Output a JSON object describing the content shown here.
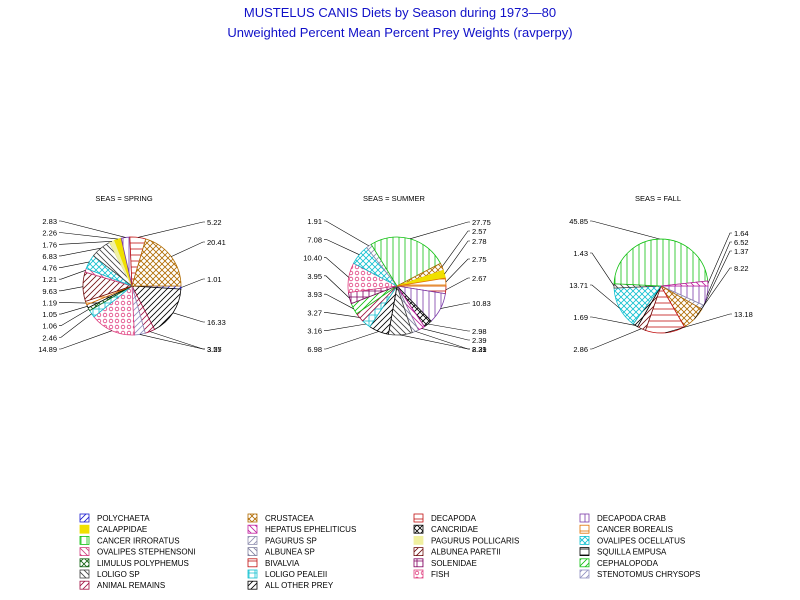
{
  "chart_data": {
    "type": "pie",
    "title": "MUSTELUS CANIS Diets by Season during 1973—80",
    "subtitle": "Unweighted Percent Mean Percent Prey  Weights (ravperpy)",
    "legend_position": "bottom",
    "categories": [
      {
        "name": "POLYCHAETA",
        "color": "#1a1ad0",
        "pattern": "diag-fwd"
      },
      {
        "name": "CRUSTACEA",
        "color": "#b06a00",
        "pattern": "crosshatch-diag"
      },
      {
        "name": "DECAPODA",
        "color": "#c01010",
        "pattern": "horiz"
      },
      {
        "name": "DECAPODA CRAB",
        "color": "#7a3aa8",
        "pattern": "vert"
      },
      {
        "name": "CALAPPIDAE",
        "color": "#f0e000",
        "pattern": "solid"
      },
      {
        "name": "HEPATUS EPHELITICUS",
        "color": "#c020a0",
        "pattern": "diag-back"
      },
      {
        "name": "CANCRIDAE",
        "color": "#000000",
        "pattern": "crosshatch-diag"
      },
      {
        "name": "CANCER BOREALIS",
        "color": "#e07000",
        "pattern": "horiz"
      },
      {
        "name": "CANCER IRRORATUS",
        "color": "#10c010",
        "pattern": "vert"
      },
      {
        "name": "PAGURUS SP",
        "color": "#9090b0",
        "pattern": "diag-fwd"
      },
      {
        "name": "PAGURUS POLLICARIS",
        "color": "#f0f0a0",
        "pattern": "solid"
      },
      {
        "name": "OVALIPES OCELLATUS",
        "color": "#10c0d0",
        "pattern": "crosshatch-diag"
      },
      {
        "name": "OVALIPES STEPHENSONI",
        "color": "#d04080",
        "pattern": "diag-back"
      },
      {
        "name": "ALBUNEA SP",
        "color": "#8080a0",
        "pattern": "diag-back"
      },
      {
        "name": "ALBUNEA PARETII",
        "color": "#701010",
        "pattern": "diag-fwd"
      },
      {
        "name": "SQUILLA EMPUSA",
        "color": "#000000",
        "pattern": "horiz"
      },
      {
        "name": "LIMULUS POLYPHEMUS",
        "color": "#106010",
        "pattern": "crosshatch-diag"
      },
      {
        "name": "BIVALVIA",
        "color": "#c01010",
        "pattern": "horiz"
      },
      {
        "name": "SOLENIDAE",
        "color": "#800060",
        "pattern": "crosshatch"
      },
      {
        "name": "CEPHALOPODA",
        "color": "#10c010",
        "pattern": "diag-fwd"
      },
      {
        "name": "LOLIGO SP",
        "color": "#404040",
        "pattern": "diag-back"
      },
      {
        "name": "LOLIGO PEALEII",
        "color": "#10c0d0",
        "pattern": "crosshatch"
      },
      {
        "name": "FISH",
        "color": "#e04080",
        "pattern": "circles"
      },
      {
        "name": "STENOTOMUS CHRYSOPS",
        "color": "#9090c0",
        "pattern": "diag-fwd"
      },
      {
        "name": "ANIMAL REMAINS",
        "color": "#a01040",
        "pattern": "diag-fwd"
      },
      {
        "name": "ALL OTHER PREY",
        "color": "#000000",
        "pattern": "diag-fwd"
      }
    ],
    "panels": [
      {
        "title": "SEAS = SPRING",
        "slices": [
          {
            "category": "POLYCHAETA",
            "value": 1.01
          },
          {
            "category": "ALL OTHER PREY",
            "value": 16.33
          },
          {
            "category": "ANIMAL REMAINS",
            "value": 3.27
          },
          {
            "category": "STENOTOMUS CHRYSOPS",
            "value": 3.55
          },
          {
            "category": "FISH",
            "value": 14.89
          },
          {
            "category": "LOLIGO PEALEII",
            "value": 2.46
          },
          {
            "category": "LIMULUS POLYPHEMUS",
            "value": 1.06
          },
          {
            "category": "SQUILLA EMPUSA",
            "value": 1.05
          },
          {
            "category": "CANCER BOREALIS",
            "value": 1.19
          },
          {
            "category": "ALBUNEA PARETII",
            "value": 9.63
          },
          {
            "category": "OVALIPES STEPHENSONI",
            "value": 1.21
          },
          {
            "category": "OVALIPES OCELLATUS",
            "value": 4.76
          },
          {
            "category": "LOLIGO SP",
            "value": 6.83
          },
          {
            "category": "PAGURUS POLLICARIS",
            "value": 1.76
          },
          {
            "category": "CALAPPIDAE",
            "value": 2.26
          },
          {
            "category": "DECAPODA CRAB",
            "value": 2.83
          },
          {
            "category": "DECAPODA",
            "value": 5.22
          },
          {
            "category": "CRUSTACEA",
            "value": 20.41
          }
        ],
        "labels": [
          "5.22",
          "20.41",
          "1.01",
          "16.33",
          "3.27",
          "3.55",
          "14.89",
          "2.46",
          "1.06",
          "1.05",
          "1.19",
          "9.63",
          "1.21",
          "4.76",
          "6.83",
          "1.76",
          "2.26",
          "2.83"
        ]
      },
      {
        "title": "SEAS = SUMMER",
        "slices": [
          {
            "category": "DECAPODA",
            "value": 2.67
          },
          {
            "category": "DECAPODA CRAB",
            "value": 10.83
          },
          {
            "category": "CANCRIDAE",
            "value": 2.98
          },
          {
            "category": "HEPATUS EPHELITICUS",
            "value": 2.39
          },
          {
            "category": "ALBUNEA SP",
            "value": 2.29
          },
          {
            "category": "LOLIGO SP",
            "value": 8.31
          },
          {
            "category": "ALL OTHER PREY",
            "value": 6.98
          },
          {
            "category": "LOLIGO PEALEII",
            "value": 3.16
          },
          {
            "category": "ANIMAL REMAINS",
            "value": 3.27
          },
          {
            "category": "CEPHALOPODA",
            "value": 3.93
          },
          {
            "category": "SOLENIDAE",
            "value": 3.95
          },
          {
            "category": "FISH",
            "value": 10.4
          },
          {
            "category": "OVALIPES OCELLATUS",
            "value": 7.08
          },
          {
            "category": "PAGURUS SP",
            "value": 1.91
          },
          {
            "category": "CANCER IRRORATUS",
            "value": 27.75
          },
          {
            "category": "CRUSTACEA",
            "value": 2.57
          },
          {
            "category": "CALAPPIDAE",
            "value": 2.78
          },
          {
            "category": "CANCER BOREALIS",
            "value": 2.75
          }
        ],
        "labels": [
          "2.67",
          "2.57",
          "2.78",
          "2.75",
          "10.83",
          "2.98",
          "2.39",
          "2.29",
          "8.31",
          "6.98",
          "3.16",
          "3.27",
          "3.93",
          "3.95",
          "10.40",
          "7.08",
          "1.91",
          "27.75"
        ]
      },
      {
        "title": "SEAS = FALL",
        "slices": [
          {
            "category": "DECAPODA CRAB",
            "value": 6.52
          },
          {
            "category": "PAGURUS SP",
            "value": 1.37
          },
          {
            "category": "CRUSTACEA",
            "value": 8.22
          },
          {
            "category": "DECAPODA",
            "value": 13.18
          },
          {
            "category": "ALBUNEA PARETII",
            "value": 2.86
          },
          {
            "category": "ALL OTHER PREY",
            "value": 1.69
          },
          {
            "category": "OVALIPES OCELLATUS",
            "value": 13.71
          },
          {
            "category": "LOLIGO SP",
            "value": 1.43
          },
          {
            "category": "CANCER IRRORATUS",
            "value": 45.85
          },
          {
            "category": "HEPATUS EPHELITICUS",
            "value": 1.64
          }
        ],
        "labels": [
          "1.64",
          "6.52",
          "1.37",
          "8.22",
          "13.18",
          "2.86",
          "1.69",
          "13.71",
          "1.43",
          "45.85"
        ]
      }
    ]
  }
}
